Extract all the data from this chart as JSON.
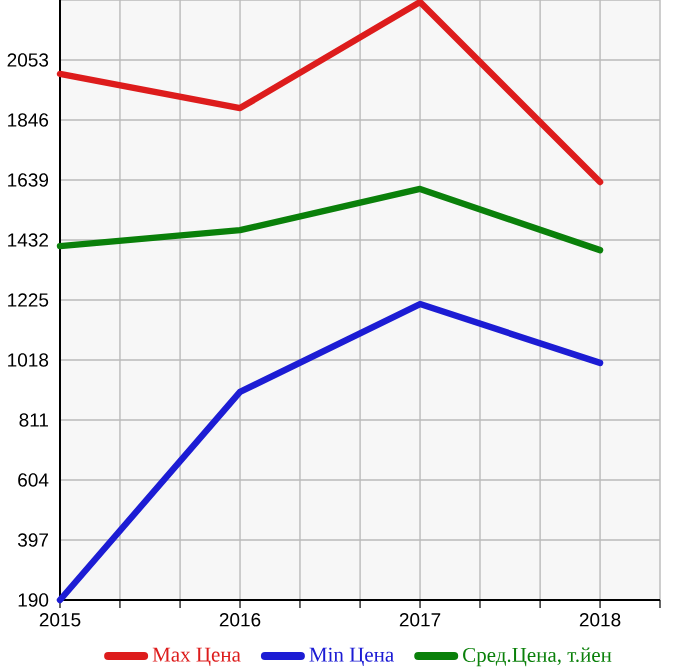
{
  "chart_data": {
    "type": "line",
    "x": [
      2015,
      2016,
      2017,
      2018
    ],
    "series": [
      {
        "name": "Max Цена",
        "color": "#dd1c1c",
        "values": [
          2005,
          1887,
          2253,
          1632
        ]
      },
      {
        "name": "Min Цена",
        "color": "#1c1cd4",
        "values": [
          190,
          908,
          1211,
          1008
        ]
      },
      {
        "name": "Сред.Цена, т.йен",
        "color": "#0a800a",
        "values": [
          1411,
          1466,
          1608,
          1397
        ]
      }
    ],
    "xlim": [
      2015,
      2018.333
    ],
    "xticks": [
      2015,
      {
        "value": 2015.333,
        "label": null
      },
      {
        "value": 2015.667,
        "label": null
      },
      2016,
      {
        "value": 2016.333,
        "label": null
      },
      {
        "value": 2016.667,
        "label": null
      },
      2017,
      {
        "value": 2017.333,
        "label": null
      },
      {
        "value": 2017.667,
        "label": null
      },
      2018,
      {
        "value": 2018.333,
        "label": null
      }
    ],
    "ylim": [
      190,
      2260
    ],
    "yticks": [
      190,
      397,
      604,
      811,
      1018,
      1225,
      1432,
      1639,
      1846,
      2053,
      {
        "value": 2260,
        "label": null
      }
    ],
    "grid": true,
    "legend": "bottom",
    "marker": "none",
    "line_style": "solid"
  }
}
